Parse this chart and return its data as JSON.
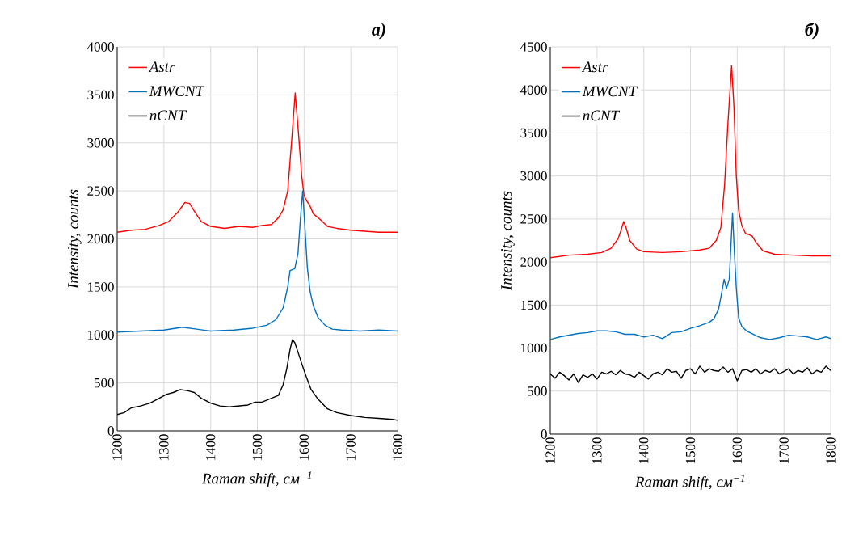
{
  "chart_data": [
    {
      "type": "line",
      "title": "a)",
      "xlabel": "Raman shift, см$^{−1}$",
      "ylabel": "Intensity, counts",
      "xlim": [
        1200,
        1800
      ],
      "ylim": [
        0,
        4000
      ],
      "xticks": [
        1200,
        1300,
        1400,
        1500,
        1600,
        1700,
        1800
      ],
      "yticks": [
        0,
        500,
        1000,
        1500,
        2000,
        2500,
        3000,
        3500,
        4000
      ],
      "grid": true,
      "legend": "top left",
      "line_style": "solid",
      "marker": "none",
      "series": [
        {
          "name": "Astr",
          "color": "#ff0000",
          "x": [
            1200,
            1230,
            1260,
            1290,
            1310,
            1330,
            1345,
            1355,
            1365,
            1380,
            1400,
            1430,
            1460,
            1490,
            1510,
            1530,
            1545,
            1555,
            1565,
            1573,
            1581,
            1588,
            1595,
            1600,
            1605,
            1612,
            1620,
            1635,
            1650,
            1670,
            1700,
            1730,
            1760,
            1800
          ],
          "values": [
            2070,
            2090,
            2100,
            2140,
            2180,
            2280,
            2380,
            2370,
            2290,
            2180,
            2130,
            2110,
            2130,
            2120,
            2140,
            2150,
            2220,
            2300,
            2500,
            3000,
            3520,
            3100,
            2650,
            2450,
            2400,
            2350,
            2260,
            2200,
            2130,
            2110,
            2090,
            2080,
            2070,
            2070
          ]
        },
        {
          "name": "MWCNT",
          "color": "#0070c0",
          "x": [
            1200,
            1250,
            1300,
            1340,
            1370,
            1400,
            1450,
            1490,
            1520,
            1540,
            1555,
            1565,
            1570,
            1580,
            1587,
            1592,
            1597,
            1602,
            1607,
            1613,
            1620,
            1630,
            1645,
            1660,
            1680,
            1720,
            1760,
            1800
          ],
          "values": [
            1030,
            1040,
            1050,
            1080,
            1060,
            1040,
            1050,
            1070,
            1100,
            1160,
            1280,
            1500,
            1670,
            1690,
            1850,
            2200,
            2500,
            2100,
            1700,
            1450,
            1300,
            1180,
            1100,
            1060,
            1050,
            1040,
            1050,
            1040
          ]
        },
        {
          "name": "nCNT",
          "color": "#000000",
          "x": [
            1200,
            1215,
            1230,
            1250,
            1270,
            1290,
            1305,
            1320,
            1335,
            1350,
            1365,
            1380,
            1400,
            1420,
            1440,
            1460,
            1480,
            1495,
            1510,
            1530,
            1545,
            1555,
            1563,
            1570,
            1575,
            1580,
            1587,
            1595,
            1605,
            1615,
            1630,
            1650,
            1670,
            1700,
            1730,
            1760,
            1790,
            1800
          ],
          "values": [
            170,
            190,
            240,
            260,
            290,
            340,
            380,
            400,
            430,
            420,
            400,
            340,
            290,
            260,
            250,
            260,
            270,
            300,
            300,
            340,
            370,
            480,
            650,
            850,
            950,
            920,
            820,
            700,
            560,
            430,
            330,
            230,
            190,
            160,
            140,
            130,
            120,
            110
          ]
        }
      ]
    },
    {
      "type": "line",
      "title": "б)",
      "xlabel": "Raman shift, см$^{−1}$",
      "ylabel": "Intensity, counts",
      "xlim": [
        1200,
        1800
      ],
      "ylim": [
        0,
        4500
      ],
      "xticks": [
        1200,
        1300,
        1400,
        1500,
        1600,
        1700,
        1800
      ],
      "yticks": [
        0,
        500,
        1000,
        1500,
        2000,
        2500,
        3000,
        3500,
        4000,
        4500
      ],
      "grid": true,
      "legend": "top left",
      "line_style": "solid",
      "marker": "none",
      "series": [
        {
          "name": "Astr",
          "color": "#ff0000",
          "x": [
            1200,
            1240,
            1280,
            1310,
            1330,
            1345,
            1352,
            1357,
            1362,
            1370,
            1385,
            1400,
            1440,
            1480,
            1520,
            1540,
            1555,
            1565,
            1573,
            1580,
            1588,
            1593,
            1598,
            1603,
            1610,
            1618,
            1625,
            1632,
            1640,
            1655,
            1680,
            1720,
            1760,
            1800
          ],
          "values": [
            2050,
            2080,
            2090,
            2110,
            2160,
            2270,
            2380,
            2470,
            2400,
            2250,
            2150,
            2120,
            2110,
            2120,
            2140,
            2160,
            2250,
            2400,
            2900,
            3600,
            4280,
            3800,
            3000,
            2600,
            2420,
            2330,
            2320,
            2300,
            2230,
            2130,
            2090,
            2080,
            2070,
            2070
          ]
        },
        {
          "name": "MWCNT",
          "color": "#0070c0",
          "x": [
            1200,
            1220,
            1240,
            1260,
            1280,
            1300,
            1320,
            1340,
            1360,
            1380,
            1400,
            1420,
            1440,
            1460,
            1480,
            1500,
            1520,
            1540,
            1550,
            1560,
            1566,
            1572,
            1577,
            1583,
            1590,
            1594,
            1598,
            1603,
            1610,
            1620,
            1635,
            1650,
            1670,
            1690,
            1710,
            1730,
            1750,
            1770,
            1790,
            1800
          ],
          "values": [
            1100,
            1130,
            1150,
            1170,
            1180,
            1200,
            1200,
            1190,
            1160,
            1160,
            1130,
            1150,
            1110,
            1180,
            1190,
            1230,
            1260,
            1300,
            1340,
            1450,
            1620,
            1800,
            1690,
            1800,
            2570,
            2100,
            1700,
            1350,
            1250,
            1200,
            1160,
            1120,
            1100,
            1120,
            1150,
            1140,
            1130,
            1100,
            1130,
            1110
          ]
        },
        {
          "name": "nCNT",
          "color": "#000000",
          "x": [
            1200,
            1210,
            1220,
            1230,
            1240,
            1250,
            1260,
            1270,
            1280,
            1290,
            1300,
            1310,
            1320,
            1330,
            1340,
            1350,
            1360,
            1370,
            1380,
            1390,
            1400,
            1410,
            1420,
            1430,
            1440,
            1450,
            1460,
            1470,
            1480,
            1490,
            1500,
            1510,
            1520,
            1530,
            1540,
            1550,
            1560,
            1570,
            1580,
            1590,
            1600,
            1610,
            1620,
            1630,
            1640,
            1650,
            1660,
            1670,
            1680,
            1690,
            1700,
            1710,
            1720,
            1730,
            1740,
            1750,
            1760,
            1770,
            1780,
            1790,
            1800
          ],
          "values": [
            700,
            650,
            720,
            680,
            630,
            700,
            600,
            690,
            660,
            700,
            640,
            720,
            700,
            730,
            690,
            740,
            700,
            690,
            660,
            720,
            680,
            640,
            700,
            720,
            690,
            760,
            720,
            730,
            650,
            740,
            760,
            700,
            790,
            720,
            760,
            740,
            730,
            780,
            720,
            760,
            620,
            740,
            750,
            720,
            760,
            700,
            740,
            720,
            760,
            700,
            730,
            760,
            700,
            740,
            720,
            770,
            700,
            740,
            720,
            790,
            740
          ]
        }
      ]
    }
  ]
}
